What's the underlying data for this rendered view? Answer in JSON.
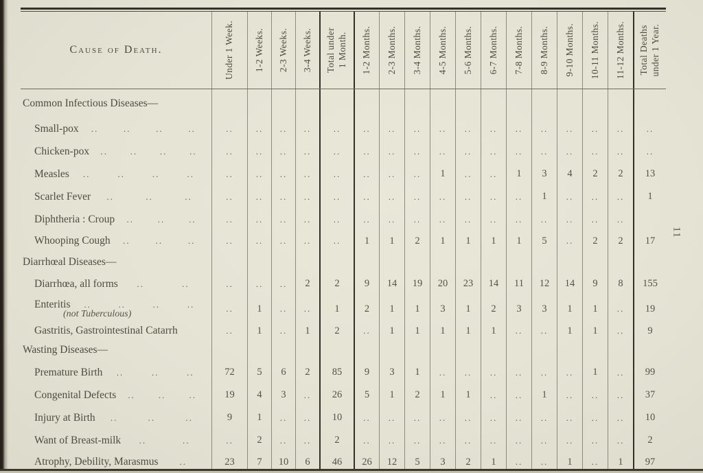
{
  "page": {
    "number": "11"
  },
  "colors": {
    "paper": "#e5e3d4",
    "ink": "#4e4c42",
    "rule_dark": "#33302a",
    "rule_light": "#8d8a7b"
  },
  "table": {
    "cause_header": "Cause of Death.",
    "empty_marker": "..",
    "columns": [
      "Under 1 Week.",
      "1-2 Weeks.",
      "2-3 Weeks.",
      "3-4 Weeks.",
      "Total under\n1 Month.",
      "1-2 Months.",
      "2-3 Months.",
      "3-4 Months.",
      "4-5 Months.",
      "5-6 Months.",
      "6-7 Months.",
      "7-8 Months.",
      "8-9 Months.",
      "9-10 Months.",
      "10-11 Months.",
      "11-12 Months.",
      "Total Deaths\nunder 1 Year."
    ],
    "rows": [
      {
        "type": "section",
        "label": "Common Infectious Diseases—"
      },
      {
        "type": "data",
        "label": "Small-pox",
        "leaders": 4,
        "cells": [
          "..",
          "..",
          "..",
          "..",
          "..",
          "..",
          "..",
          "..",
          "..",
          "..",
          "..",
          "..",
          "..",
          "..",
          "..",
          "..",
          ".."
        ]
      },
      {
        "type": "data",
        "label": "Chicken-pox",
        "leaders": 4,
        "cells": [
          "..",
          "..",
          "..",
          "..",
          "..",
          "..",
          "..",
          "..",
          "..",
          "..",
          "..",
          "..",
          "..",
          "..",
          "..",
          "..",
          ".."
        ]
      },
      {
        "type": "data",
        "label": "Measles",
        "leaders": 4,
        "cells": [
          "..",
          "..",
          "..",
          "..",
          "..",
          "..",
          "..",
          "..",
          "1",
          "..",
          "..",
          "1",
          "3",
          "4",
          "2",
          "2",
          "13"
        ]
      },
      {
        "type": "data",
        "label": "Scarlet Fever",
        "leaders": 3,
        "cells": [
          "..",
          "..",
          "..",
          "..",
          "..",
          "..",
          "..",
          "..",
          "..",
          "..",
          "..",
          "..",
          "1",
          "..",
          "..",
          "..",
          "1"
        ]
      },
      {
        "type": "data",
        "label": "Diphtheria : Croup",
        "leaders": 3,
        "cells": [
          "..",
          "..",
          "..",
          "..",
          "..",
          "..",
          "..",
          "..",
          "..",
          "..",
          "..",
          "..",
          "..",
          "..",
          "..",
          "..",
          ""
        ]
      },
      {
        "type": "data",
        "label": "Whooping Cough",
        "leaders": 3,
        "cells": [
          "..",
          "..",
          "..",
          "..",
          "..",
          "1",
          "1",
          "2",
          "1",
          "1",
          "1",
          "1",
          "5",
          "..",
          "2",
          "2",
          "17"
        ]
      },
      {
        "type": "section",
        "label": "Diarrhœal Diseases—"
      },
      {
        "type": "data",
        "label": "Diarrhœa, all forms",
        "leaders": 2,
        "cells": [
          "..",
          "..",
          "..",
          "2",
          "2",
          "9",
          "14",
          "19",
          "20",
          "23",
          "14",
          "11",
          "12",
          "14",
          "9",
          "8",
          "155"
        ]
      },
      {
        "type": "data",
        "label": "Enteritis",
        "leaders": 4,
        "sublabel": "(not Tuberculous)",
        "cells": [
          "..",
          "1",
          "..",
          "..",
          "1",
          "2",
          "1",
          "1",
          "3",
          "1",
          "2",
          "3",
          "3",
          "1",
          "1",
          "..",
          "19"
        ]
      },
      {
        "type": "data",
        "label": "Gastritis, Gastrointestinal Catarrh",
        "leaders": 0,
        "cells": [
          "..",
          "1",
          "..",
          "1",
          "2",
          "..",
          "1",
          "1",
          "1",
          "1",
          "1",
          "..",
          "..",
          "1",
          "1",
          "..",
          "9"
        ]
      },
      {
        "type": "section",
        "label": "Wasting Diseases—"
      },
      {
        "type": "data",
        "label": "Premature Birth",
        "leaders": 3,
        "cells": [
          "72",
          "5",
          "6",
          "2",
          "85",
          "9",
          "3",
          "1",
          "..",
          "..",
          "..",
          "..",
          "..",
          "..",
          "1",
          "..",
          "99"
        ]
      },
      {
        "type": "data",
        "label": "Congenital Defects",
        "leaders": 3,
        "cells": [
          "19",
          "4",
          "3",
          "..",
          "26",
          "5",
          "1",
          "2",
          "1",
          "1",
          "..",
          "..",
          "1",
          "..",
          "..",
          "..",
          "37"
        ]
      },
      {
        "type": "data",
        "label": "Injury at Birth",
        "leaders": 3,
        "cells": [
          "9",
          "1",
          "..",
          "..",
          "10",
          "..",
          "..",
          "..",
          "..",
          "..",
          "..",
          "..",
          "..",
          "..",
          "..",
          "..",
          "10"
        ]
      },
      {
        "type": "data",
        "label": "Want of Breast-milk",
        "leaders": 2,
        "cells": [
          "..",
          "2",
          "..",
          "..",
          "2",
          "..",
          "..",
          "..",
          "..",
          "..",
          "..",
          "..",
          "..",
          "..",
          "..",
          "..",
          "2"
        ]
      },
      {
        "type": "data",
        "label": "Atrophy, Debility, Marasmus",
        "leaders": 1,
        "cells": [
          "23",
          "7",
          "10",
          "6",
          "46",
          "26",
          "12",
          "5",
          "3",
          "2",
          "1",
          "..",
          "..",
          "1",
          "..",
          "1",
          "97"
        ]
      }
    ]
  }
}
